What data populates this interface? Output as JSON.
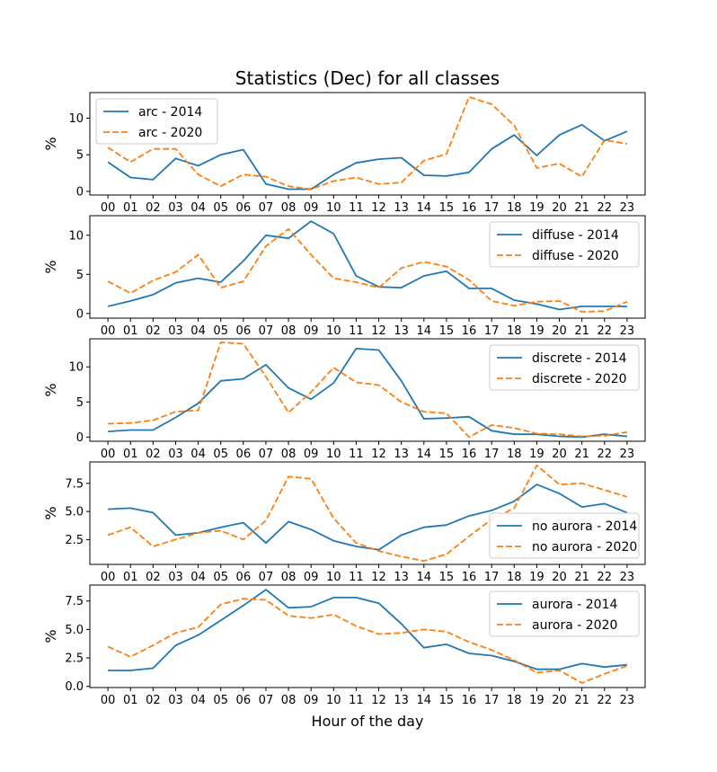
{
  "title": "Statistics (Dec) for all classes",
  "xlabel": "Hour of the day",
  "colors": {
    "s2014": "#1f77b4",
    "s2020": "#ff7f0e"
  },
  "chart_data": [
    {
      "type": "line",
      "ylabel": "%",
      "ylim": [
        -0.5,
        13.5
      ],
      "yticks": [
        0,
        5,
        10
      ],
      "legend": "top-left",
      "categories": [
        "00",
        "01",
        "02",
        "03",
        "04",
        "05",
        "06",
        "07",
        "08",
        "09",
        "10",
        "11",
        "12",
        "13",
        "14",
        "15",
        "16",
        "17",
        "18",
        "19",
        "20",
        "21",
        "22",
        "23"
      ],
      "series": [
        {
          "name": "arc - 2014",
          "style": "solid",
          "values": [
            4.0,
            1.9,
            1.6,
            4.5,
            3.5,
            5.0,
            5.7,
            1.0,
            0.3,
            0.3,
            2.3,
            3.9,
            4.4,
            4.6,
            2.2,
            2.1,
            2.6,
            5.8,
            7.7,
            4.9,
            7.7,
            9.1,
            6.9,
            8.2
          ]
        },
        {
          "name": "arc - 2020",
          "style": "dashed",
          "values": [
            6.0,
            4.0,
            5.8,
            5.8,
            2.3,
            0.7,
            2.3,
            2.0,
            0.7,
            0.3,
            1.4,
            1.9,
            1.0,
            1.2,
            4.2,
            5.1,
            12.9,
            11.9,
            9.0,
            3.2,
            3.8,
            2.0,
            7.0,
            6.5
          ]
        }
      ]
    },
    {
      "type": "line",
      "ylabel": "%",
      "ylim": [
        -0.6,
        12.5
      ],
      "yticks": [
        0,
        5,
        10
      ],
      "legend": "top-right",
      "categories": [
        "00",
        "01",
        "02",
        "03",
        "04",
        "05",
        "06",
        "07",
        "08",
        "09",
        "10",
        "11",
        "12",
        "13",
        "14",
        "15",
        "16",
        "17",
        "18",
        "19",
        "20",
        "21",
        "22",
        "23"
      ],
      "series": [
        {
          "name": "diffuse - 2014",
          "style": "solid",
          "values": [
            0.9,
            1.6,
            2.4,
            3.9,
            4.5,
            4.0,
            6.7,
            10.0,
            9.6,
            11.8,
            10.2,
            4.8,
            3.4,
            3.3,
            4.8,
            5.4,
            3.2,
            3.2,
            1.7,
            1.2,
            0.5,
            0.9,
            0.9,
            0.9
          ]
        },
        {
          "name": "diffuse - 2020",
          "style": "dashed",
          "values": [
            4.1,
            2.6,
            4.2,
            5.3,
            7.5,
            3.3,
            4.1,
            8.6,
            10.8,
            7.5,
            4.5,
            4.0,
            3.3,
            5.8,
            6.6,
            6.0,
            4.3,
            1.6,
            1.0,
            1.5,
            1.6,
            0.2,
            0.3,
            1.5
          ]
        }
      ]
    },
    {
      "type": "line",
      "ylabel": "%",
      "ylim": [
        -0.6,
        14.0
      ],
      "yticks": [
        0,
        5,
        10
      ],
      "legend": "top-right",
      "categories": [
        "00",
        "01",
        "02",
        "03",
        "04",
        "05",
        "06",
        "07",
        "08",
        "09",
        "10",
        "11",
        "12",
        "13",
        "14",
        "15",
        "16",
        "17",
        "18",
        "19",
        "20",
        "21",
        "22",
        "23"
      ],
      "series": [
        {
          "name": "discrete - 2014",
          "style": "solid",
          "values": [
            0.8,
            1.0,
            1.0,
            2.8,
            4.8,
            8.0,
            8.3,
            10.3,
            7.0,
            5.4,
            7.7,
            12.6,
            12.4,
            8.0,
            2.6,
            2.7,
            2.9,
            0.9,
            0.4,
            0.4,
            0.1,
            0.0,
            0.4,
            0.1
          ]
        },
        {
          "name": "discrete - 2020",
          "style": "dashed",
          "values": [
            1.9,
            2.0,
            2.4,
            3.6,
            3.8,
            13.5,
            13.3,
            8.6,
            3.5,
            6.4,
            9.9,
            7.8,
            7.4,
            5.0,
            3.6,
            3.4,
            0.0,
            1.7,
            1.3,
            0.5,
            0.4,
            0.1,
            0.2,
            0.7
          ]
        }
      ]
    },
    {
      "type": "line",
      "ylabel": "%",
      "ylim": [
        0.3,
        9.4
      ],
      "yticks": [
        2.5,
        5.0,
        7.5
      ],
      "legend": "lower-right",
      "categories": [
        "00",
        "01",
        "02",
        "03",
        "04",
        "05",
        "06",
        "07",
        "08",
        "09",
        "10",
        "11",
        "12",
        "13",
        "14",
        "15",
        "16",
        "17",
        "18",
        "19",
        "20",
        "21",
        "22",
        "23"
      ],
      "series": [
        {
          "name": "no aurora - 2014",
          "style": "solid",
          "values": [
            5.2,
            5.3,
            4.9,
            2.9,
            3.1,
            3.6,
            4.0,
            2.2,
            4.1,
            3.4,
            2.4,
            1.9,
            1.6,
            2.9,
            3.6,
            3.8,
            4.6,
            5.1,
            5.9,
            7.4,
            6.6,
            5.4,
            5.7,
            4.9
          ]
        },
        {
          "name": "no aurora - 2020",
          "style": "dashed",
          "values": [
            2.9,
            3.6,
            1.9,
            2.5,
            3.1,
            3.3,
            2.5,
            4.2,
            8.1,
            7.9,
            4.4,
            2.2,
            1.5,
            1.0,
            0.6,
            1.2,
            2.8,
            4.3,
            5.3,
            9.1,
            7.4,
            7.5,
            6.9,
            6.3
          ]
        }
      ]
    },
    {
      "type": "line",
      "ylabel": "%",
      "ylim": [
        -0.1,
        8.9
      ],
      "yticks": [
        0.0,
        2.5,
        5.0,
        7.5
      ],
      "legend": "top-right",
      "categories": [
        "00",
        "01",
        "02",
        "03",
        "04",
        "05",
        "06",
        "07",
        "08",
        "09",
        "10",
        "11",
        "12",
        "13",
        "14",
        "15",
        "16",
        "17",
        "18",
        "19",
        "20",
        "21",
        "22",
        "23"
      ],
      "series": [
        {
          "name": "aurora - 2014",
          "style": "solid",
          "values": [
            1.4,
            1.4,
            1.6,
            3.6,
            4.5,
            5.8,
            7.1,
            8.5,
            6.9,
            7.0,
            7.8,
            7.8,
            7.3,
            5.5,
            3.4,
            3.7,
            2.9,
            2.7,
            2.2,
            1.5,
            1.5,
            2.0,
            1.7,
            1.9
          ]
        },
        {
          "name": "aurora - 2020",
          "style": "dashed",
          "values": [
            3.5,
            2.6,
            3.6,
            4.7,
            5.2,
            7.2,
            7.7,
            7.6,
            6.2,
            6.0,
            6.3,
            5.3,
            4.6,
            4.7,
            5.0,
            4.8,
            3.9,
            3.2,
            2.3,
            1.2,
            1.4,
            0.3,
            1.1,
            1.8
          ]
        }
      ]
    }
  ]
}
